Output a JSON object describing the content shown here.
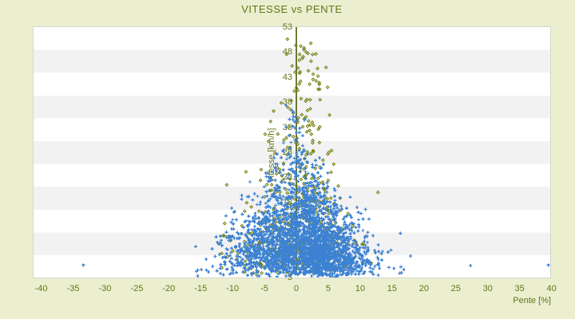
{
  "title": "VITESSE vs PENTE",
  "colors": {
    "page_bg": "#ebefd0",
    "plot_bg": "#ffffff",
    "band_stripe": "#f2f2f2",
    "plot_border": "#d6d6ca",
    "axis_text": "#637618",
    "zero_axis_line": "#4c5a08",
    "series_blue": "#3d82d2",
    "series_olive": "#6e7c08"
  },
  "chart_data": {
    "type": "scatter",
    "title": "VITESSE vs PENTE",
    "xlabel": "Pente [%]",
    "ylabel": "Vitesse [km/h]",
    "xlim": [
      -41.2,
      39.8
    ],
    "ylim": [
      3,
      53
    ],
    "xticks": [
      -40,
      -35,
      -30,
      -25,
      -20,
      -15,
      -10,
      -5,
      0,
      5,
      10,
      15,
      20,
      25,
      30,
      35,
      40
    ],
    "yticks": [
      53,
      48,
      43,
      38,
      33,
      28,
      23,
      18,
      13,
      8,
      3
    ],
    "grid": "horizontal alternating white/gray bands",
    "legend_position": "none",
    "zero_line_x": 0,
    "y_axis_drawn_at_x": 0,
    "series": [
      {
        "id": "blue",
        "marker": "plus",
        "color": "#3d82d2",
        "count": 2800,
        "seed": 42,
        "shape_note": "dense triangular cone: wide at low speed (-15..+17 %), narrow near 38 km/h, dense core 0..+6 %",
        "y_model": {
          "base": 3,
          "exp1": 4.6,
          "exp2": 3.4,
          "max": 37.5,
          "uniform_frac": 0.0,
          "uniform_range": [
            4,
            36
          ]
        },
        "x_model": {
          "center0": 2.3,
          "center_slope": -0.09,
          "width0": 16.0,
          "width_slope": -0.47,
          "width_min": 2.2,
          "spread_div": 3.0,
          "left_stretch": 1.45,
          "clip": [
            -16.5,
            17.5
          ]
        },
        "outliers": [
          [
            -33.4,
            5.5
          ],
          [
            27.3,
            5.4
          ],
          [
            39.5,
            5.5
          ],
          [
            17.9,
            7.3
          ],
          [
            16.3,
            11.8
          ],
          [
            -15.8,
            9.2
          ],
          [
            -14.9,
            4.6
          ],
          [
            12.9,
            8.2
          ]
        ]
      },
      {
        "id": "olive",
        "marker": "diamond",
        "color": "#6e7c08",
        "count": 520,
        "seed": 7,
        "shape_note": "sparser cloud -12..+13 %, reaches 46-51 km/h near pente 0..+3, left flank dense at -4..-9 % for 15-33 km/h",
        "y_model": {
          "base": 3,
          "exp1": 5.2,
          "exp2": 3.8,
          "max": 50.5,
          "uniform_frac": 0.28,
          "uniform_range": [
            5,
            50
          ]
        },
        "x_model": {
          "center0": 0.6,
          "center_slope": 0.02,
          "width0": 12.5,
          "width_slope": -0.22,
          "width_min": 1.6,
          "spread_div": 2.7,
          "left_stretch": 1.35,
          "clip": [
            -13,
            13.5
          ]
        },
        "outliers": [
          [
            -1.4,
            50.6
          ],
          [
            1.2,
            48.5
          ],
          [
            2.3,
            46.2
          ],
          [
            -0.2,
            44.0
          ],
          [
            3.4,
            43.2
          ],
          [
            -10.9,
            21.5
          ],
          [
            12.8,
            20.0
          ],
          [
            4.9,
            41.0
          ]
        ]
      }
    ]
  }
}
